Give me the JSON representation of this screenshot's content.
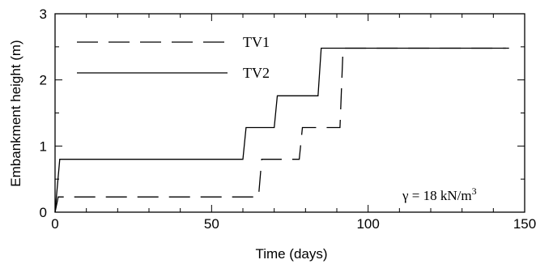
{
  "chart_data": {
    "type": "line",
    "xlabel": "Time (days)",
    "ylabel": "Embankment height (m)",
    "xlim": [
      0,
      150
    ],
    "ylim": [
      0,
      3
    ],
    "xticks": [
      0,
      50,
      100,
      150
    ],
    "yticks": [
      0,
      1,
      2,
      3
    ],
    "x_minor_step": 10,
    "y_minor_step": 0.5,
    "grid": false,
    "legend_position": "top-left",
    "series": [
      {
        "name": "TV1",
        "style": "dashed",
        "color": "#000000",
        "x": [
          0,
          1,
          65,
          66,
          78,
          79,
          91,
          92,
          145
        ],
        "y": [
          0,
          0.23,
          0.23,
          0.8,
          0.8,
          1.28,
          1.28,
          2.48,
          2.48
        ]
      },
      {
        "name": "TV2",
        "style": "solid",
        "color": "#000000",
        "x": [
          0,
          1.5,
          60,
          61,
          70,
          71,
          84,
          85,
          144
        ],
        "y": [
          0,
          0.8,
          0.8,
          1.28,
          1.28,
          1.76,
          1.76,
          2.48,
          2.48
        ]
      }
    ],
    "annotation": {
      "prefix": "γ = 18 kN/m",
      "superscript": "3"
    }
  }
}
